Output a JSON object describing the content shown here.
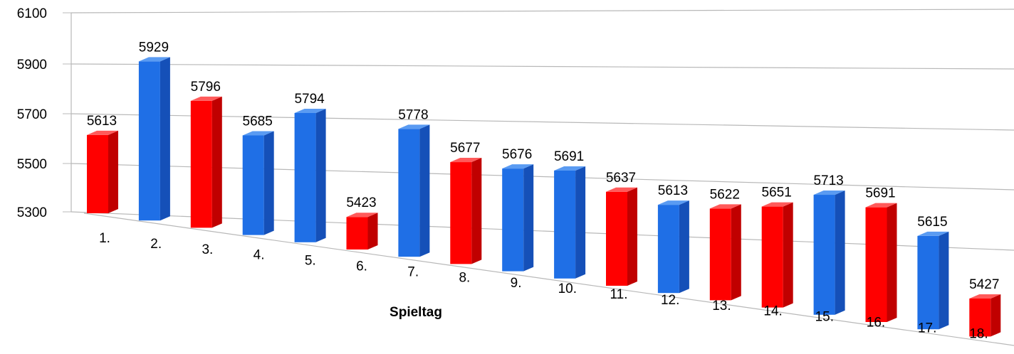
{
  "chart_data": {
    "type": "bar",
    "title": "",
    "xlabel": "Spieltag",
    "ylabel": "",
    "ylim": [
      5300,
      6100
    ],
    "yticks": [
      "5300",
      "5500",
      "5700",
      "5900",
      "6100"
    ],
    "grid": true,
    "legend": "none",
    "categories": [
      "1.",
      "2.",
      "3.",
      "4.",
      "5.",
      "6.",
      "7.",
      "8.",
      "9.",
      "10.",
      "11.",
      "12.",
      "13.",
      "14.",
      "15.",
      "16.",
      "17.",
      "18."
    ],
    "values": [
      5613,
      5929,
      5796,
      5685,
      5794,
      5423,
      5778,
      5677,
      5676,
      5691,
      5637,
      5613,
      5622,
      5651,
      5713,
      5691,
      5615,
      5427
    ],
    "value_labels": [
      "5613",
      "5929",
      "5796",
      "5685",
      "5794",
      "5423",
      "5778",
      "5677",
      "5676",
      "5691",
      "5637",
      "5613",
      "5622",
      "5651",
      "5713",
      "5691",
      "5615",
      "5427"
    ],
    "bar_colors": [
      "red",
      "blue",
      "red",
      "blue",
      "blue",
      "red",
      "blue",
      "red",
      "blue",
      "blue",
      "red",
      "blue",
      "red",
      "red",
      "blue",
      "red",
      "blue",
      "red"
    ],
    "palette": {
      "red": {
        "front": "#ff0000",
        "side": "#c00000",
        "top": "#ff5a5a"
      },
      "blue": {
        "front": "#1f6fe6",
        "side": "#1550b8",
        "top": "#5a9bf2"
      },
      "grid": "#b8b8b8"
    }
  }
}
